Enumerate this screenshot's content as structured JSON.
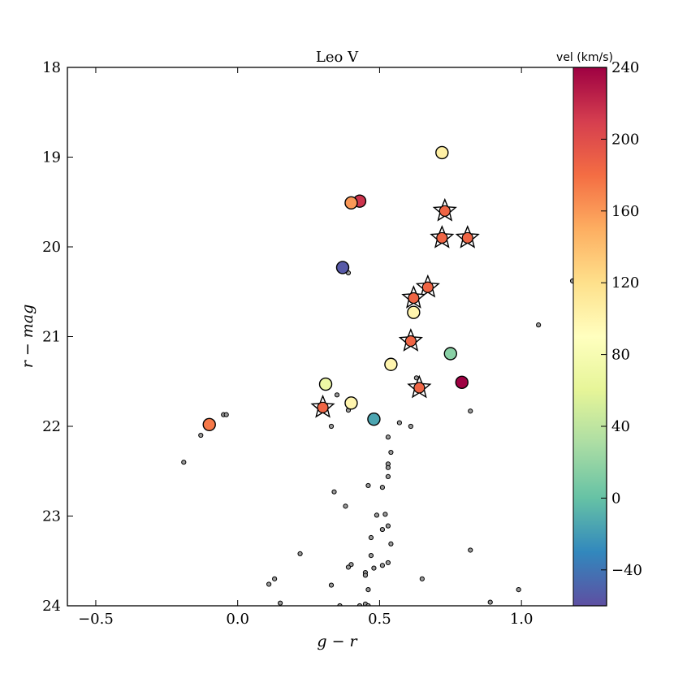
{
  "chart_data": {
    "type": "scatter",
    "title": "Leo V",
    "xlabel": "g − r",
    "ylabel": "r − mag",
    "xlim": [
      -0.6,
      1.3
    ],
    "ylim": [
      24,
      18
    ],
    "y_inverted": true,
    "x_ticks": [
      -0.5,
      0.0,
      0.5,
      1.0
    ],
    "x_tick_labels": [
      "−0.5",
      "0.0",
      "0.5",
      "1.0"
    ],
    "y_ticks": [
      18,
      19,
      20,
      21,
      22,
      23,
      24
    ],
    "y_tick_labels": [
      "18",
      "19",
      "20",
      "21",
      "22",
      "23",
      "24"
    ],
    "grid": false,
    "colorbar": {
      "label": "vel (km/s)",
      "range": [
        -60,
        240
      ],
      "ticks": [
        -40,
        0,
        40,
        80,
        120,
        160,
        200,
        240
      ],
      "tick_labels": [
        "−40",
        "0",
        "40",
        "80",
        "120",
        "160",
        "200",
        "240"
      ],
      "colormap": "Spectral_r",
      "colors": [
        "#5e4fa2",
        "#3288bd",
        "#66c2a5",
        "#abdda4",
        "#e6f598",
        "#ffffbf",
        "#fee08b",
        "#fdae61",
        "#f46d43",
        "#d53e4f",
        "#9e0142"
      ]
    },
    "series": [
      {
        "marker": "star",
        "points": [
          {
            "x": 0.73,
            "y": 19.6,
            "vel": 185
          },
          {
            "x": 0.72,
            "y": 19.9,
            "vel": 185
          },
          {
            "x": 0.81,
            "y": 19.9,
            "vel": 185
          },
          {
            "x": 0.67,
            "y": 20.45,
            "vel": 185
          },
          {
            "x": 0.62,
            "y": 20.57,
            "vel": 185
          },
          {
            "x": 0.61,
            "y": 21.05,
            "vel": 185
          },
          {
            "x": 0.64,
            "y": 21.57,
            "vel": 185
          },
          {
            "x": 0.3,
            "y": 21.79,
            "vel": 185
          }
        ]
      },
      {
        "marker": "circle",
        "points": [
          {
            "x": 0.72,
            "y": 18.95,
            "vel": 105
          },
          {
            "x": 0.43,
            "y": 19.49,
            "vel": 215
          },
          {
            "x": 0.4,
            "y": 19.51,
            "vel": 160
          },
          {
            "x": 0.37,
            "y": 20.23,
            "vel": -55
          },
          {
            "x": 0.62,
            "y": 20.73,
            "vel": 100
          },
          {
            "x": 0.75,
            "y": 21.19,
            "vel": 15
          },
          {
            "x": 0.54,
            "y": 21.31,
            "vel": 100
          },
          {
            "x": 0.31,
            "y": 21.53,
            "vel": 70
          },
          {
            "x": 0.79,
            "y": 21.51,
            "vel": 240
          },
          {
            "x": 0.4,
            "y": 21.74,
            "vel": 100
          },
          {
            "x": 0.48,
            "y": 21.92,
            "vel": -15
          },
          {
            "x": -0.1,
            "y": 21.98,
            "vel": 175
          }
        ]
      },
      {
        "marker": "dot",
        "points": [
          {
            "x": 0.39,
            "y": 20.29
          },
          {
            "x": 1.18,
            "y": 20.38
          },
          {
            "x": 1.06,
            "y": 20.87
          },
          {
            "x": 0.63,
            "y": 21.46
          },
          {
            "x": 0.35,
            "y": 21.65
          },
          {
            "x": 0.39,
            "y": 21.82
          },
          {
            "x": 0.82,
            "y": 21.83
          },
          {
            "x": -0.05,
            "y": 21.87
          },
          {
            "x": -0.04,
            "y": 21.87
          },
          {
            "x": 0.57,
            "y": 21.96
          },
          {
            "x": 0.33,
            "y": 22.0
          },
          {
            "x": 0.61,
            "y": 22.0
          },
          {
            "x": -0.13,
            "y": 22.1
          },
          {
            "x": 0.53,
            "y": 22.12
          },
          {
            "x": 0.54,
            "y": 22.29
          },
          {
            "x": -0.19,
            "y": 22.4
          },
          {
            "x": 0.53,
            "y": 22.42
          },
          {
            "x": 0.53,
            "y": 22.46
          },
          {
            "x": 0.53,
            "y": 22.56
          },
          {
            "x": 0.46,
            "y": 22.66
          },
          {
            "x": 0.51,
            "y": 22.68
          },
          {
            "x": 0.34,
            "y": 22.73
          },
          {
            "x": 0.38,
            "y": 22.89
          },
          {
            "x": 0.49,
            "y": 22.99
          },
          {
            "x": 0.52,
            "y": 22.98
          },
          {
            "x": 0.53,
            "y": 23.11
          },
          {
            "x": 0.51,
            "y": 23.15
          },
          {
            "x": 0.47,
            "y": 23.24
          },
          {
            "x": 0.54,
            "y": 23.31
          },
          {
            "x": 0.82,
            "y": 23.38
          },
          {
            "x": 0.22,
            "y": 23.42
          },
          {
            "x": 0.47,
            "y": 23.44
          },
          {
            "x": 0.53,
            "y": 23.52
          },
          {
            "x": 0.4,
            "y": 23.54
          },
          {
            "x": 0.51,
            "y": 23.55
          },
          {
            "x": 0.39,
            "y": 23.57
          },
          {
            "x": 0.48,
            "y": 23.58
          },
          {
            "x": 0.45,
            "y": 23.63
          },
          {
            "x": 0.45,
            "y": 23.66
          },
          {
            "x": 0.13,
            "y": 23.7
          },
          {
            "x": 0.65,
            "y": 23.7
          },
          {
            "x": 0.11,
            "y": 23.76
          },
          {
            "x": 0.33,
            "y": 23.77
          },
          {
            "x": 0.46,
            "y": 23.82
          },
          {
            "x": 0.99,
            "y": 23.82
          },
          {
            "x": 0.15,
            "y": 23.97
          },
          {
            "x": 0.89,
            "y": 23.96
          },
          {
            "x": 0.45,
            "y": 23.98
          },
          {
            "x": 0.43,
            "y": 24.0
          },
          {
            "x": 0.36,
            "y": 24.0
          },
          {
            "x": 0.46,
            "y": 24.0
          }
        ]
      }
    ]
  }
}
